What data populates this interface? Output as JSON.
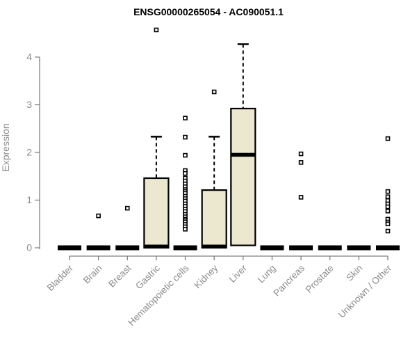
{
  "chart_data": {
    "type": "boxplot",
    "title": "ENSG00000265054 - AC090051.1",
    "ylabel": "Expression",
    "xlabel": "",
    "ylim": [
      0,
      4
    ],
    "yticks": [
      0,
      1,
      2,
      3,
      4
    ],
    "grid": "off",
    "legend": "none",
    "categories": [
      "Bladder",
      "Brain",
      "Breast",
      "Gastric",
      "Hematopoietic cells",
      "Kidney",
      "Liver",
      "Lung",
      "Pancreas",
      "Prostate",
      "Skin",
      "Unknown / Other"
    ],
    "boxes": [
      {
        "category": "Bladder",
        "low": 0,
        "q1": 0,
        "median": 0,
        "q3": 0,
        "high": 0,
        "outliers": []
      },
      {
        "category": "Brain",
        "low": 0,
        "q1": 0,
        "median": 0,
        "q3": 0,
        "high": 0,
        "outliers": [
          0.67
        ]
      },
      {
        "category": "Breast",
        "low": 0,
        "q1": 0,
        "median": 0,
        "q3": 0,
        "high": 0,
        "outliers": [
          0.83
        ]
      },
      {
        "category": "Gastric",
        "low": 0,
        "q1": 0,
        "median": 0,
        "q3": 1.46,
        "high": 2.33,
        "outliers": [
          4.57
        ]
      },
      {
        "category": "Hematopoietic cells",
        "low": 0,
        "q1": 0,
        "median": 0,
        "q3": 0,
        "high": 0,
        "outliers": [
          2.72,
          2.32,
          1.94,
          1.62,
          1.56,
          1.46,
          1.4,
          1.34,
          1.28,
          1.22,
          1.18,
          1.14,
          1.08,
          1.03,
          0.98,
          0.92,
          0.87,
          0.81,
          0.76,
          0.7,
          0.65,
          0.6,
          0.57,
          0.54,
          0.49,
          0.44,
          0.39
        ]
      },
      {
        "category": "Kidney",
        "low": 0,
        "q1": 0,
        "median": 0,
        "q3": 1.21,
        "high": 2.33,
        "outliers": [
          3.27
        ]
      },
      {
        "category": "Liver",
        "low": 0.05,
        "q1": 0.05,
        "median": 1.95,
        "q3": 2.92,
        "high": 4.27,
        "outliers": []
      },
      {
        "category": "Lung",
        "low": 0,
        "q1": 0,
        "median": 0,
        "q3": 0,
        "high": 0,
        "outliers": []
      },
      {
        "category": "Pancreas",
        "low": 0,
        "q1": 0,
        "median": 0,
        "q3": 0,
        "high": 0,
        "outliers": [
          1.97,
          1.79,
          1.06
        ]
      },
      {
        "category": "Prostate",
        "low": 0,
        "q1": 0,
        "median": 0,
        "q3": 0,
        "high": 0,
        "outliers": []
      },
      {
        "category": "Skin",
        "low": 0,
        "q1": 0,
        "median": 0,
        "q3": 0,
        "high": 0,
        "outliers": []
      },
      {
        "category": "Unknown / Other",
        "low": 0,
        "q1": 0,
        "median": 0,
        "q3": 0,
        "high": 0,
        "outliers": [
          2.29,
          1.18,
          1.07,
          0.99,
          0.92,
          0.86,
          0.77,
          0.6,
          0.54,
          0.5,
          0.35
        ]
      }
    ],
    "colors": {
      "box_fill": "#ECE7CF",
      "box_border": "#000000",
      "median": "#000000",
      "whisker": "#000000",
      "outlier": "#000000",
      "axis_line": "#7F7F7F",
      "tick_label": "#8B8B8B",
      "title": "#000000",
      "background": "#FFFFFF"
    }
  }
}
